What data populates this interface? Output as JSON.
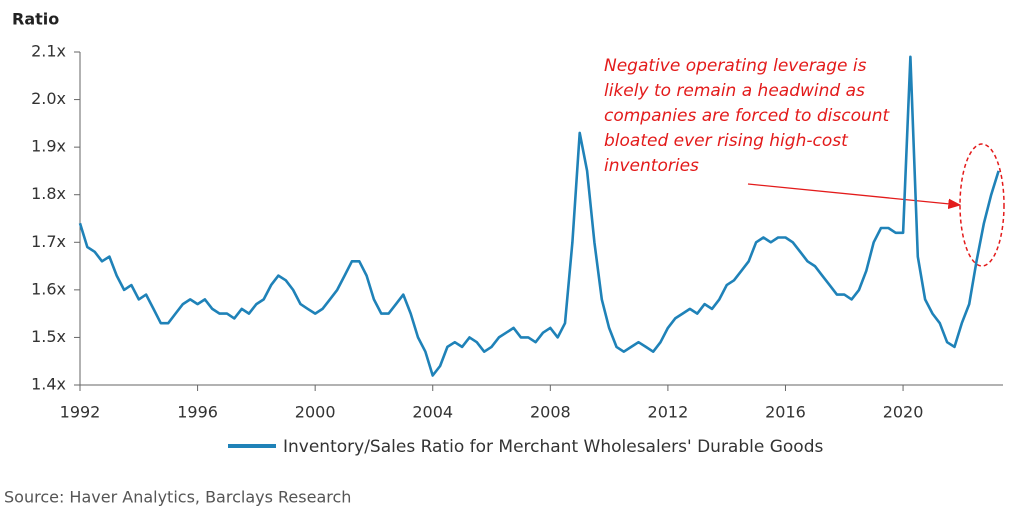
{
  "chart_data": {
    "type": "line",
    "y_label": "Ratio",
    "xlim": [
      1992,
      2023.4
    ],
    "xticks": [
      1992,
      1996,
      2000,
      2004,
      2008,
      2012,
      2016,
      2020
    ],
    "ylim": [
      1.4,
      2.1
    ],
    "yticks": [
      {
        "value": 1.4,
        "label": "1.4x"
      },
      {
        "value": 1.5,
        "label": "1.5x"
      },
      {
        "value": 1.6,
        "label": "1.6x"
      },
      {
        "value": 1.7,
        "label": "1.7x"
      },
      {
        "value": 1.8,
        "label": "1.8x"
      },
      {
        "value": 1.9,
        "label": "1.9x"
      },
      {
        "value": 2.0,
        "label": "2.0x"
      },
      {
        "value": 2.1,
        "label": "2.1x"
      }
    ],
    "x": [
      1992.0,
      1992.25,
      1992.5,
      1992.75,
      1993.0,
      1993.25,
      1993.5,
      1993.75,
      1994.0,
      1994.25,
      1994.5,
      1994.75,
      1995.0,
      1995.25,
      1995.5,
      1995.75,
      1996.0,
      1996.25,
      1996.5,
      1996.75,
      1997.0,
      1997.25,
      1997.5,
      1997.75,
      1998.0,
      1998.25,
      1998.5,
      1998.75,
      1999.0,
      1999.25,
      1999.5,
      1999.75,
      2000.0,
      2000.25,
      2000.5,
      2000.75,
      2001.0,
      2001.25,
      2001.5,
      2001.75,
      2002.0,
      2002.25,
      2002.5,
      2002.75,
      2003.0,
      2003.25,
      2003.5,
      2003.75,
      2004.0,
      2004.25,
      2004.5,
      2004.75,
      2005.0,
      2005.25,
      2005.5,
      2005.75,
      2006.0,
      2006.25,
      2006.5,
      2006.75,
      2007.0,
      2007.25,
      2007.5,
      2007.75,
      2008.0,
      2008.25,
      2008.5,
      2008.75,
      2009.0,
      2009.25,
      2009.5,
      2009.75,
      2010.0,
      2010.25,
      2010.5,
      2010.75,
      2011.0,
      2011.25,
      2011.5,
      2011.75,
      2012.0,
      2012.25,
      2012.5,
      2012.75,
      2013.0,
      2013.25,
      2013.5,
      2013.75,
      2014.0,
      2014.25,
      2014.5,
      2014.75,
      2015.0,
      2015.25,
      2015.5,
      2015.75,
      2016.0,
      2016.25,
      2016.5,
      2016.75,
      2017.0,
      2017.25,
      2017.5,
      2017.75,
      2018.0,
      2018.25,
      2018.5,
      2018.75,
      2019.0,
      2019.25,
      2019.5,
      2019.75,
      2020.0,
      2020.25,
      2020.5,
      2020.75,
      2021.0,
      2021.25,
      2021.5,
      2021.75,
      2022.0,
      2022.25,
      2022.5,
      2022.75,
      2023.0,
      2023.25
    ],
    "series": [
      {
        "name": "Inventory/Sales Ratio for Merchant Wholesalers' Durable Goods",
        "color": "#1f82b8",
        "values": [
          1.74,
          1.69,
          1.68,
          1.66,
          1.67,
          1.63,
          1.6,
          1.61,
          1.58,
          1.59,
          1.56,
          1.53,
          1.53,
          1.55,
          1.57,
          1.58,
          1.57,
          1.58,
          1.56,
          1.55,
          1.55,
          1.54,
          1.56,
          1.55,
          1.57,
          1.58,
          1.61,
          1.63,
          1.62,
          1.6,
          1.57,
          1.56,
          1.55,
          1.56,
          1.58,
          1.6,
          1.63,
          1.66,
          1.66,
          1.63,
          1.58,
          1.55,
          1.55,
          1.57,
          1.59,
          1.55,
          1.5,
          1.47,
          1.42,
          1.44,
          1.48,
          1.49,
          1.48,
          1.5,
          1.49,
          1.47,
          1.48,
          1.5,
          1.51,
          1.52,
          1.5,
          1.5,
          1.49,
          1.51,
          1.52,
          1.5,
          1.53,
          1.7,
          1.93,
          1.85,
          1.7,
          1.58,
          1.52,
          1.48,
          1.47,
          1.48,
          1.49,
          1.48,
          1.47,
          1.49,
          1.52,
          1.54,
          1.55,
          1.56,
          1.55,
          1.57,
          1.56,
          1.58,
          1.61,
          1.62,
          1.64,
          1.66,
          1.7,
          1.71,
          1.7,
          1.71,
          1.71,
          1.7,
          1.68,
          1.66,
          1.65,
          1.63,
          1.61,
          1.59,
          1.59,
          1.58,
          1.6,
          1.64,
          1.7,
          1.73,
          1.73,
          1.72,
          1.72,
          2.09,
          1.67,
          1.58,
          1.55,
          1.53,
          1.49,
          1.48,
          1.53,
          1.57,
          1.66,
          1.74,
          1.8,
          1.85
        ]
      }
    ],
    "annotation": [
      "Negative operating leverage is",
      "likely to remain a headwind as",
      "companies are forced to discount",
      "bloated ever rising high-cost",
      "inventories"
    ],
    "source": "Source: Haver Analytics, Barclays Research"
  }
}
